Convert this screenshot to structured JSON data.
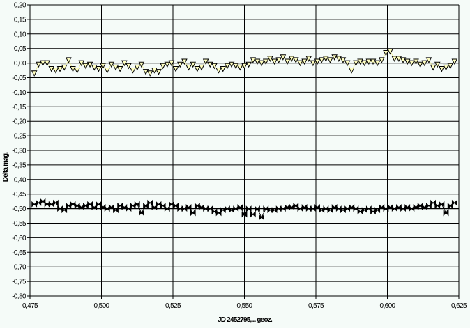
{
  "chart_data": {
    "type": "scatter",
    "title": "",
    "xlabel": "JD 2452795,... geoz.",
    "ylabel": "Delta mag.",
    "xlim": [
      0.475,
      0.625
    ],
    "ylim": [
      -0.8,
      0.2
    ],
    "grid": true,
    "legend": "none",
    "x_ticks": [
      "0,475",
      "0,500",
      "0,525",
      "0,550",
      "0,575",
      "0,600",
      "0,625"
    ],
    "y_ticks": [
      "0,20",
      "0,15",
      "0,10",
      "0,05",
      "0,00",
      "-0,05",
      "-0,10",
      "-0,15",
      "-0,20",
      "-0,25",
      "-0,30",
      "-0,35",
      "-0,40",
      "-0,45",
      "-0,50",
      "-0,55",
      "-0,60",
      "-0,65",
      "-0,70",
      "-0,75",
      "-0,80"
    ],
    "x_start": 0.4765,
    "x_step": 0.0015,
    "series": [
      {
        "marker": "triangle-down",
        "color": "#ffffc0",
        "line_color": "#f0f0a0",
        "values": [
          -0.035,
          -0.005,
          0.0,
          0.0,
          -0.02,
          -0.025,
          -0.02,
          -0.015,
          0.01,
          -0.02,
          -0.025,
          0.0,
          -0.01,
          -0.005,
          -0.015,
          -0.02,
          -0.01,
          -0.025,
          -0.005,
          -0.015,
          -0.02,
          0.0,
          -0.01,
          -0.025,
          -0.015,
          -0.005,
          -0.03,
          -0.035,
          -0.025,
          -0.03,
          -0.01,
          -0.005,
          0.0,
          -0.02,
          -0.005,
          0.005,
          -0.015,
          -0.005,
          -0.02,
          -0.015,
          0.005,
          -0.005,
          -0.01,
          -0.025,
          -0.02,
          -0.01,
          -0.005,
          -0.01,
          -0.015,
          -0.01,
          -0.005,
          0.01,
          0.005,
          0.0,
          0.005,
          0.015,
          0.005,
          0.01,
          0.02,
          0.005,
          0.015,
          0.01,
          0.0,
          0.005,
          0.015,
          0.0,
          0.005,
          0.01,
          0.015,
          0.01,
          0.02,
          0.015,
          0.01,
          0.0,
          -0.025,
          0.0,
          0.005,
          0.0,
          0.005,
          0.005,
          0.0,
          0.01,
          0.035,
          0.04,
          0.015,
          0.015,
          0.01,
          0.005,
          0.0,
          0.005,
          -0.005,
          0.0,
          0.01,
          -0.015,
          -0.005,
          -0.02,
          -0.015,
          -0.01,
          0.005
        ]
      },
      {
        "marker": "bowtie",
        "color": "#000000",
        "line_color": "#000000",
        "values": [
          -0.485,
          -0.48,
          -0.475,
          -0.485,
          -0.485,
          -0.48,
          -0.5,
          -0.505,
          -0.49,
          -0.485,
          -0.49,
          -0.495,
          -0.49,
          -0.485,
          -0.495,
          -0.485,
          -0.495,
          -0.5,
          -0.495,
          -0.505,
          -0.49,
          -0.495,
          -0.5,
          -0.49,
          -0.485,
          -0.515,
          -0.49,
          -0.48,
          -0.495,
          -0.485,
          -0.49,
          -0.5,
          -0.485,
          -0.49,
          -0.5,
          -0.5,
          -0.495,
          -0.515,
          -0.49,
          -0.495,
          -0.5,
          -0.5,
          -0.51,
          -0.515,
          -0.505,
          -0.5,
          -0.505,
          -0.5,
          -0.495,
          -0.52,
          -0.5,
          -0.52,
          -0.5,
          -0.53,
          -0.5,
          -0.505,
          -0.505,
          -0.5,
          -0.5,
          -0.495,
          -0.495,
          -0.49,
          -0.5,
          -0.495,
          -0.5,
          -0.5,
          -0.495,
          -0.505,
          -0.5,
          -0.505,
          -0.495,
          -0.5,
          -0.505,
          -0.5,
          -0.495,
          -0.5,
          -0.51,
          -0.505,
          -0.5,
          -0.51,
          -0.505,
          -0.495,
          -0.5,
          -0.495,
          -0.5,
          -0.495,
          -0.5,
          -0.495,
          -0.5,
          -0.495,
          -0.49,
          -0.495,
          -0.49,
          -0.48,
          -0.49,
          -0.485,
          -0.515,
          -0.49,
          -0.48
        ]
      }
    ]
  }
}
